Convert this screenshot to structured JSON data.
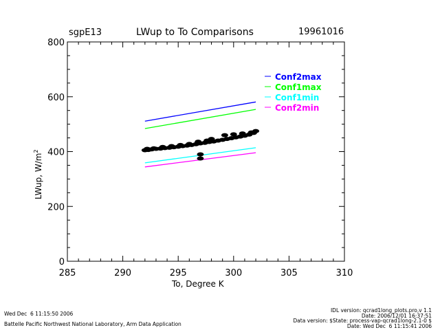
{
  "chart_data": {
    "type": "scatter",
    "site": "sgpE13",
    "title": "LWup to To Comparisons",
    "date": "19961016",
    "xlabel": "To, Degree K",
    "ylabel": "LWup, W/m",
    "ylabel_sup": "2",
    "xlim": [
      285,
      310
    ],
    "ylim": [
      0,
      800
    ],
    "xticks": [
      285,
      290,
      295,
      300,
      305,
      310
    ],
    "yticks": [
      0,
      200,
      400,
      600,
      800
    ],
    "lines": [
      {
        "name": "Conf2max",
        "color": "#0000ff",
        "x": [
          292,
          302
        ],
        "y": [
          511,
          581
        ]
      },
      {
        "name": "Conf1max",
        "color": "#00ff00",
        "x": [
          292,
          302
        ],
        "y": [
          484,
          554
        ]
      },
      {
        "name": "Conf1min",
        "color": "#00ffff",
        "x": [
          292,
          302
        ],
        "y": [
          359,
          414
        ]
      },
      {
        "name": "Conf2min",
        "color": "#ff00ff",
        "x": [
          292,
          302
        ],
        "y": [
          344,
          396
        ]
      }
    ],
    "scatter": {
      "name": "LWup vs To",
      "color": "#000000",
      "x": [
        292.0,
        292.3,
        292.6,
        293.0,
        293.4,
        293.8,
        294.2,
        294.6,
        295.0,
        295.4,
        295.8,
        296.2,
        296.6,
        297.0,
        297.4,
        297.8,
        298.2,
        298.6,
        299.0,
        299.4,
        299.8,
        300.2,
        300.6,
        301.0,
        301.4,
        301.8,
        292.2,
        292.8,
        293.6,
        294.4,
        295.2,
        296.0,
        296.8,
        297.6,
        298.0,
        299.2,
        300.0,
        300.8,
        301.6,
        297.0,
        297.0,
        302.0
      ],
      "y": [
        405,
        406,
        408,
        410,
        411,
        413,
        414,
        416,
        418,
        420,
        422,
        424,
        427,
        430,
        432,
        435,
        437,
        440,
        443,
        446,
        449,
        452,
        455,
        458,
        462,
        468,
        410,
        412,
        417,
        420,
        424,
        428,
        436,
        440,
        446,
        460,
        463,
        466,
        470,
        390,
        375,
        475
      ]
    }
  },
  "footer": {
    "left_date": "Wed Dec  6 11:15:50 2006",
    "left_org": "Battelle Pacific Northwest National Laboratory, Arm Data Application",
    "right_lines": [
      "IDL version: qcrad1long_plots.pro,v 1.1",
      "Date: 2006/12/01 16:37:51",
      "Data version: $State: process-vap-qcrad1long-2.1-0 $",
      "Date: Wed Dec  6 11:15:41 2006"
    ]
  }
}
